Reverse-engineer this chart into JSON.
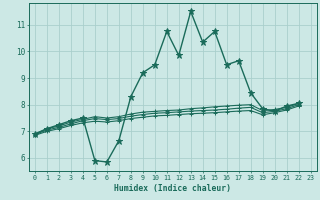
{
  "xlabel": "Humidex (Indice chaleur)",
  "bg_color": "#cce8e5",
  "line_color": "#1a6b5a",
  "grid_color": "#aacfcc",
  "xlim": [
    -0.5,
    23.5
  ],
  "ylim": [
    5.5,
    11.8
  ],
  "yticks": [
    6,
    7,
    8,
    9,
    10,
    11
  ],
  "xticks": [
    0,
    1,
    2,
    3,
    4,
    5,
    6,
    7,
    8,
    9,
    10,
    11,
    12,
    13,
    14,
    15,
    16,
    17,
    18,
    19,
    20,
    21,
    22,
    23
  ],
  "series": [
    [
      6.9,
      7.1,
      7.25,
      7.4,
      7.5,
      5.9,
      5.85,
      6.65,
      8.3,
      9.2,
      9.5,
      10.75,
      9.85,
      11.5,
      10.35,
      10.75,
      9.5,
      9.65,
      8.45,
      7.85,
      7.75,
      7.95,
      8.05
    ],
    [
      6.9,
      7.1,
      7.2,
      7.35,
      7.45,
      7.55,
      7.5,
      7.55,
      7.65,
      7.72,
      7.75,
      7.78,
      7.8,
      7.85,
      7.88,
      7.92,
      7.95,
      7.98,
      8.0,
      7.78,
      7.82,
      7.9,
      8.05
    ],
    [
      6.88,
      7.05,
      7.15,
      7.28,
      7.4,
      7.48,
      7.44,
      7.48,
      7.57,
      7.63,
      7.68,
      7.7,
      7.73,
      7.76,
      7.78,
      7.8,
      7.83,
      7.87,
      7.9,
      7.7,
      7.75,
      7.85,
      8.0
    ],
    [
      6.85,
      7.0,
      7.1,
      7.22,
      7.32,
      7.38,
      7.35,
      7.4,
      7.48,
      7.53,
      7.58,
      7.6,
      7.63,
      7.66,
      7.68,
      7.7,
      7.73,
      7.76,
      7.78,
      7.62,
      7.7,
      7.8,
      7.95
    ]
  ]
}
